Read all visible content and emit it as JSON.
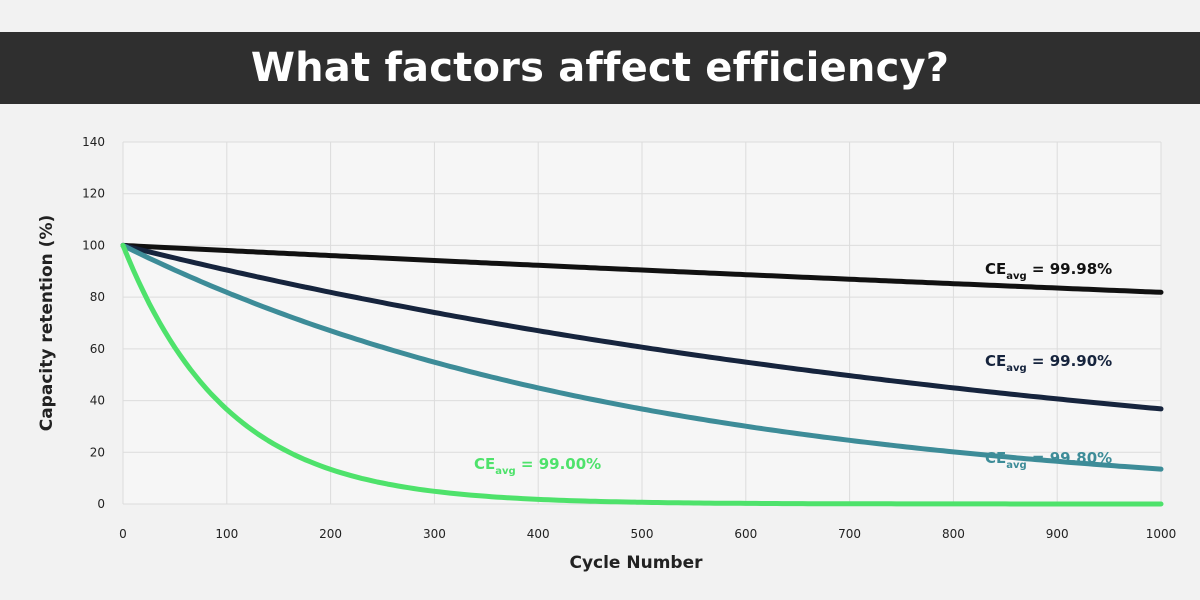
{
  "title": "What factors affect efficiency?",
  "chart_data": {
    "type": "line",
    "xlabel": "Cycle Number",
    "ylabel": "Capacity retention (%)",
    "xlim": [
      0,
      1000
    ],
    "ylim": [
      0,
      140
    ],
    "xticks": [
      0,
      100,
      200,
      300,
      400,
      500,
      600,
      700,
      800,
      900,
      1000
    ],
    "yticks": [
      0,
      20,
      40,
      60,
      80,
      100,
      120,
      140
    ],
    "grid": true,
    "series": [
      {
        "name": "CEavg = 99.98%",
        "label_prefix": "CE",
        "label_sub": "avg",
        "label_value": " = 99.98%",
        "ce": 0.9998,
        "color": "#111111",
        "x": [
          0,
          100,
          200,
          300,
          400,
          500,
          600,
          700,
          800,
          900,
          1000
        ],
        "y": [
          100,
          98.0,
          96.1,
          94.2,
          92.3,
          90.5,
          88.7,
          86.9,
          85.2,
          83.5,
          81.9
        ]
      },
      {
        "name": "CEavg = 99.90%",
        "label_prefix": "CE",
        "label_sub": "avg",
        "label_value": " = 99.90%",
        "ce": 0.999,
        "color": "#16243d",
        "x": [
          0,
          100,
          200,
          300,
          400,
          500,
          600,
          700,
          800,
          900,
          1000
        ],
        "y": [
          100,
          90.5,
          81.9,
          74.1,
          67.0,
          60.6,
          54.9,
          49.6,
          44.9,
          40.6,
          36.8
        ]
      },
      {
        "name": "CEavg = 99.80%",
        "label_prefix": "CE",
        "label_sub": "avg",
        "label_value": " = 99.80%",
        "ce": 0.998,
        "color": "#3d8c98",
        "x": [
          0,
          100,
          200,
          300,
          400,
          500,
          600,
          700,
          800,
          900,
          1000
        ],
        "y": [
          100,
          81.9,
          67.0,
          54.9,
          44.9,
          36.8,
          30.1,
          24.6,
          20.2,
          16.5,
          13.5
        ]
      },
      {
        "name": "CEavg = 99.00%",
        "label_prefix": "CE",
        "label_sub": "avg",
        "label_value": " = 99.00%",
        "ce": 0.99,
        "color": "#4ee26b",
        "x": [
          0,
          100,
          200,
          300,
          400,
          500,
          600,
          700,
          800,
          900,
          1000
        ],
        "y": [
          100,
          36.6,
          13.4,
          4.9,
          1.8,
          0.7,
          0.2,
          0.1,
          0,
          0,
          0
        ]
      }
    ]
  }
}
